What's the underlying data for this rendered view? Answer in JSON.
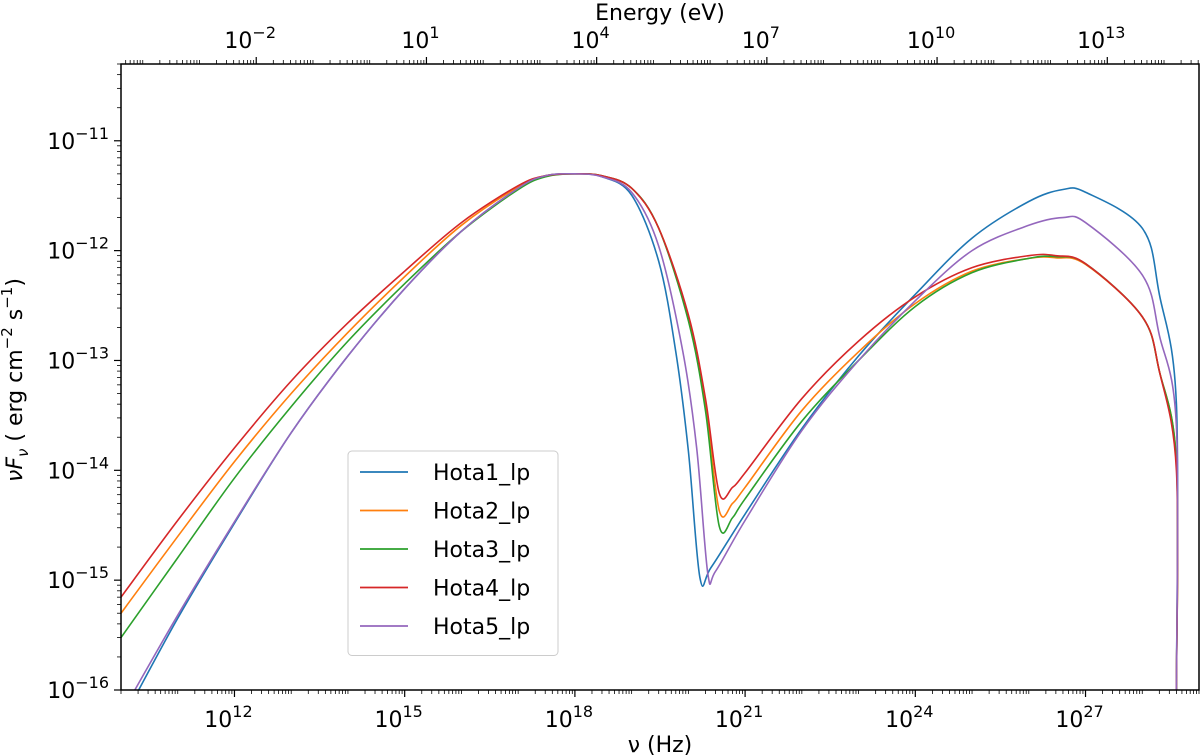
{
  "chart_data": {
    "type": "line",
    "xlabel_bottom": "ν (Hz)",
    "xlabel_top": "Energy (eV)",
    "ylabel": "νF_ν ( erg cm^-2 s^-1)",
    "x_scale": "log",
    "y_scale": "log",
    "xlim": [
      10000000000.0,
      1e+29
    ],
    "ylim": [
      1e-16,
      5e-11
    ],
    "bottom_ticks": [
      {
        "exp": "12",
        "value": 1000000000000.0
      },
      {
        "exp": "15",
        "value": 1000000000000000.0
      },
      {
        "exp": "18",
        "value": 1e+18
      },
      {
        "exp": "21",
        "value": 1e+21
      },
      {
        "exp": "24",
        "value": 1e+24
      },
      {
        "exp": "27",
        "value": 1e+27
      }
    ],
    "top_ticks": [
      {
        "exp": "−2",
        "value": 0.01
      },
      {
        "exp": "1",
        "value": 10
      },
      {
        "exp": "4",
        "value": 10000
      },
      {
        "exp": "7",
        "value": 10000000
      },
      {
        "exp": "10",
        "value": 10000000000
      },
      {
        "exp": "13",
        "value": 10000000000000
      }
    ],
    "left_ticks": [
      {
        "exp": "−11",
        "value": 1e-11
      },
      {
        "exp": "−12",
        "value": 1e-12
      },
      {
        "exp": "−13",
        "value": 1e-13
      },
      {
        "exp": "−14",
        "value": 1e-14
      },
      {
        "exp": "−15",
        "value": 1e-15
      },
      {
        "exp": "−16",
        "value": 1e-16
      }
    ],
    "grid": false,
    "legend_position": "lower-left",
    "series": [
      {
        "name": "Hota1_lp",
        "color": "#1f77b4",
        "points": [
          [
            10000000000.0,
            5e-17
          ],
          [
            100000000000.0,
            4.5e-16
          ],
          [
            1000000000000.0,
            3.3e-15
          ],
          [
            10000000000000.0,
            2.2e-14
          ],
          [
            100000000000000.0,
            1.1e-13
          ],
          [
            1000000000000000.0,
            4.5e-13
          ],
          [
            1e+16,
            1.5e-12
          ],
          [
            1e+17,
            3.7e-12
          ],
          [
            3e+17,
            4.8e-12
          ],
          [
            1e+18,
            5e-12
          ],
          [
            3e+18,
            4.7e-12
          ],
          [
            1e+19,
            3.2e-12
          ],
          [
            3e+19,
            8e-13
          ],
          [
            6e+19,
            1.2e-13
          ],
          [
            1e+20,
            1.5e-14
          ],
          [
            1.6e+20,
            1.05e-15
          ],
          [
            2.5e+20,
            1.3e-15
          ],
          [
            1e+21,
            4e-15
          ],
          [
            1e+22,
            2.4e-14
          ],
          [
            1e+23,
            1.1e-13
          ],
          [
            1e+24,
            4e-13
          ],
          [
            1e+25,
            1.3e-12
          ],
          [
            1e+26,
            2.8e-12
          ],
          [
            4e+26,
            3.6e-12
          ],
          [
            1e+27,
            3.4e-12
          ],
          [
            1e+28,
            1.6e-12
          ],
          [
            2e+28,
            4e-13
          ],
          [
            4e+28,
            4e-14
          ],
          [
            4e+28,
            1e-16
          ]
        ]
      },
      {
        "name": "Hota2_lp",
        "color": "#ff7f0e",
        "points": [
          [
            10000000000.0,
            5e-16
          ],
          [
            100000000000.0,
            2.5e-15
          ],
          [
            1000000000000.0,
            1.2e-14
          ],
          [
            10000000000000.0,
            5e-14
          ],
          [
            100000000000000.0,
            1.8e-13
          ],
          [
            1000000000000000.0,
            5.8e-13
          ],
          [
            1e+16,
            1.7e-12
          ],
          [
            1e+17,
            3.8e-12
          ],
          [
            3e+17,
            4.8e-12
          ],
          [
            1e+18,
            5e-12
          ],
          [
            3e+18,
            4.8e-12
          ],
          [
            1e+19,
            3.7e-12
          ],
          [
            3e+19,
            1.6e-12
          ],
          [
            1e+20,
            2.5e-13
          ],
          [
            2e+20,
            4e-14
          ],
          [
            3.5e+20,
            4.3e-15
          ],
          [
            6e+20,
            5e-15
          ],
          [
            1e+21,
            7e-15
          ],
          [
            1e+22,
            3.5e-14
          ],
          [
            1e+23,
            1.2e-13
          ],
          [
            1e+24,
            3.3e-13
          ],
          [
            1e+25,
            6.5e-13
          ],
          [
            1e+26,
            8.5e-13
          ],
          [
            3e+26,
            8.6e-13
          ],
          [
            1e+27,
            7.5e-13
          ],
          [
            1e+28,
            2.5e-13
          ],
          [
            2e+28,
            8e-14
          ],
          [
            4e+28,
            1.2e-14
          ],
          [
            4e+28,
            1e-16
          ]
        ]
      },
      {
        "name": "Hota3_lp",
        "color": "#2ca02c",
        "points": [
          [
            10000000000.0,
            3e-16
          ],
          [
            100000000000.0,
            1.6e-15
          ],
          [
            1000000000000.0,
            8.5e-15
          ],
          [
            10000000000000.0,
            3.8e-14
          ],
          [
            100000000000000.0,
            1.5e-13
          ],
          [
            1000000000000000.0,
            5e-13
          ],
          [
            1e+16,
            1.5e-12
          ],
          [
            1e+17,
            3.6e-12
          ],
          [
            3e+17,
            4.7e-12
          ],
          [
            1e+18,
            5e-12
          ],
          [
            3e+18,
            4.8e-12
          ],
          [
            1e+19,
            3.7e-12
          ],
          [
            3e+19,
            1.6e-12
          ],
          [
            1e+20,
            2.3e-13
          ],
          [
            2e+20,
            3.5e-14
          ],
          [
            3.5e+20,
            3.1e-15
          ],
          [
            6e+20,
            3.7e-15
          ],
          [
            1e+21,
            5.5e-15
          ],
          [
            1e+22,
            2.8e-14
          ],
          [
            1e+23,
            1e-13
          ],
          [
            1e+24,
            3.1e-13
          ],
          [
            1e+25,
            6.3e-13
          ],
          [
            1e+26,
            8.5e-13
          ],
          [
            3e+26,
            8.8e-13
          ],
          [
            1e+27,
            7.6e-13
          ],
          [
            1e+28,
            2.5e-13
          ],
          [
            2e+28,
            8e-14
          ],
          [
            4e+28,
            1.2e-14
          ],
          [
            4e+28,
            1e-16
          ]
        ]
      },
      {
        "name": "Hota4_lp",
        "color": "#d62728",
        "points": [
          [
            10000000000.0,
            7e-16
          ],
          [
            100000000000.0,
            3.5e-15
          ],
          [
            1000000000000.0,
            1.6e-14
          ],
          [
            10000000000000.0,
            6.5e-14
          ],
          [
            100000000000000.0,
            2.2e-13
          ],
          [
            1000000000000000.0,
            6.5e-13
          ],
          [
            1e+16,
            1.8e-12
          ],
          [
            1e+17,
            3.9e-12
          ],
          [
            3e+17,
            4.8e-12
          ],
          [
            1e+18,
            5e-12
          ],
          [
            3e+18,
            4.8e-12
          ],
          [
            1e+19,
            3.7e-12
          ],
          [
            3e+19,
            1.6e-12
          ],
          [
            1e+20,
            2.6e-13
          ],
          [
            2e+20,
            4.5e-14
          ],
          [
            3.5e+20,
            6.2e-15
          ],
          [
            6e+20,
            7e-15
          ],
          [
            1e+21,
            9.5e-15
          ],
          [
            1e+22,
            4.5e-14
          ],
          [
            1e+23,
            1.5e-13
          ],
          [
            1e+24,
            3.8e-13
          ],
          [
            1e+25,
            7e-13
          ],
          [
            1e+26,
            9e-13
          ],
          [
            3e+26,
            9e-13
          ],
          [
            1e+27,
            7.6e-13
          ],
          [
            1e+28,
            2.5e-13
          ],
          [
            2e+28,
            8e-14
          ],
          [
            4e+28,
            1e-14
          ],
          [
            4e+28,
            1e-16
          ]
        ]
      },
      {
        "name": "Hota5_lp",
        "color": "#9467bd",
        "points": [
          [
            10000000000.0,
            6e-17
          ],
          [
            100000000000.0,
            4.8e-16
          ],
          [
            1000000000000.0,
            3.4e-15
          ],
          [
            10000000000000.0,
            2.2e-14
          ],
          [
            100000000000000.0,
            1.1e-13
          ],
          [
            1000000000000000.0,
            4.5e-13
          ],
          [
            1e+16,
            1.5e-12
          ],
          [
            1e+17,
            3.7e-12
          ],
          [
            3e+17,
            4.8e-12
          ],
          [
            1e+18,
            5e-12
          ],
          [
            3e+18,
            4.7e-12
          ],
          [
            1e+19,
            3.4e-12
          ],
          [
            3e+19,
            1.1e-12
          ],
          [
            8e+19,
            1.2e-13
          ],
          [
            1.4e+20,
            1.6e-14
          ],
          [
            2.2e+20,
            1.15e-15
          ],
          [
            3e+20,
            1.2e-15
          ],
          [
            1e+21,
            3.5e-15
          ],
          [
            1e+22,
            2.3e-14
          ],
          [
            1e+23,
            1e-13
          ],
          [
            1e+24,
            3.5e-13
          ],
          [
            1e+25,
            1e-12
          ],
          [
            1e+26,
            1.7e-12
          ],
          [
            4e+26,
            2e-12
          ],
          [
            1e+27,
            1.8e-12
          ],
          [
            1e+28,
            6e-13
          ],
          [
            2e+28,
            1.7e-13
          ],
          [
            4e+28,
            2.5e-14
          ],
          [
            4e+28,
            1e-16
          ]
        ]
      }
    ]
  }
}
